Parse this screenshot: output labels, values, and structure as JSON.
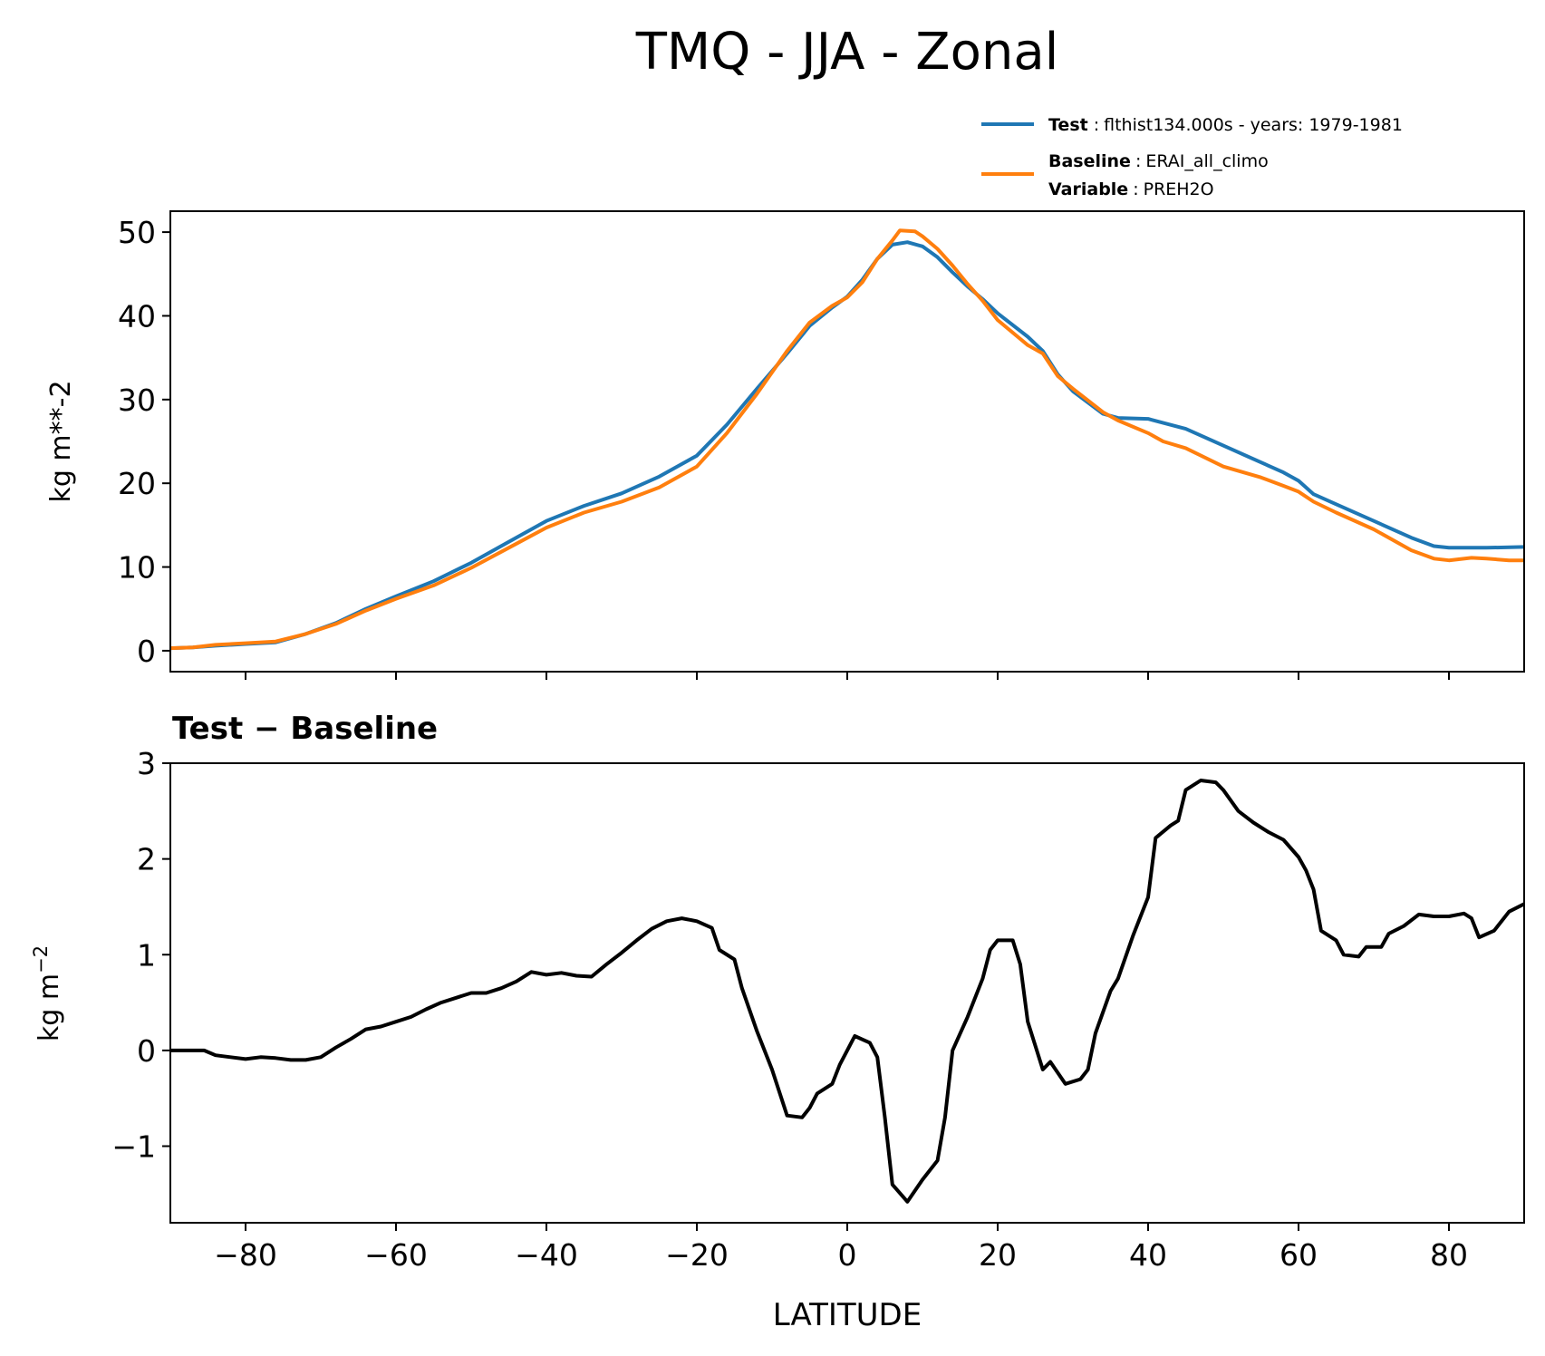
{
  "figure": {
    "title": "TMQ - JJA - Zonal"
  },
  "legend": {
    "test": {
      "label": "Test",
      "value": "flthist134.000s - years: 1979-1981",
      "color": "#1f77b4"
    },
    "baseline": {
      "label": "Baseline",
      "value": "ERAI_all_climo",
      "color": "#ff7f0e"
    },
    "variable": {
      "label": "Variable",
      "value": "PREH2O"
    }
  },
  "colors": {
    "test": "#1f77b4",
    "baseline": "#ff7f0e",
    "difference": "#000000"
  },
  "chart_data": [
    {
      "type": "line",
      "title": "",
      "xlabel": "",
      "ylabel": "kg m**-2",
      "xlim": [
        -90,
        90
      ],
      "ylim": [
        -2.5,
        52.5
      ],
      "xticks": [
        -80,
        -60,
        -40,
        -20,
        0,
        20,
        40,
        60,
        80
      ],
      "yticks": [
        0,
        10,
        20,
        30,
        40,
        50
      ],
      "ytick_labels": [
        "0",
        "10",
        "20",
        "30",
        "40",
        "50"
      ],
      "show_xtick_labels": false,
      "grid": false,
      "legend_position": "above top-right",
      "series": [
        {
          "name": "Test",
          "color": "#1f77b4",
          "points": [
            [
              -90,
              0.3
            ],
            [
              -87,
              0.4
            ],
            [
              -84,
              0.6
            ],
            [
              -80,
              0.8
            ],
            [
              -76,
              1.0
            ],
            [
              -72,
              2.0
            ],
            [
              -68,
              3.3
            ],
            [
              -64,
              5.0
            ],
            [
              -60,
              6.5
            ],
            [
              -55,
              8.3
            ],
            [
              -50,
              10.5
            ],
            [
              -45,
              13.0
            ],
            [
              -40,
              15.5
            ],
            [
              -35,
              17.3
            ],
            [
              -30,
              18.8
            ],
            [
              -25,
              20.8
            ],
            [
              -20,
              23.3
            ],
            [
              -16,
              27.0
            ],
            [
              -12,
              31.3
            ],
            [
              -8,
              35.5
            ],
            [
              -5,
              38.8
            ],
            [
              -2,
              41.0
            ],
            [
              0,
              42.3
            ],
            [
              2,
              44.3
            ],
            [
              4,
              46.8
            ],
            [
              6,
              48.5
            ],
            [
              8,
              48.8
            ],
            [
              10,
              48.3
            ],
            [
              12,
              47.0
            ],
            [
              14,
              45.2
            ],
            [
              16,
              43.5
            ],
            [
              18,
              42.0
            ],
            [
              20,
              40.3
            ],
            [
              24,
              37.5
            ],
            [
              26,
              35.8
            ],
            [
              28,
              33.0
            ],
            [
              30,
              31.0
            ],
            [
              34,
              28.3
            ],
            [
              36,
              27.8
            ],
            [
              40,
              27.7
            ],
            [
              45,
              26.5
            ],
            [
              50,
              24.5
            ],
            [
              55,
              22.5
            ],
            [
              58,
              21.3
            ],
            [
              60,
              20.3
            ],
            [
              62,
              18.7
            ],
            [
              65,
              17.5
            ],
            [
              70,
              15.5
            ],
            [
              75,
              13.5
            ],
            [
              78,
              12.5
            ],
            [
              80,
              12.3
            ],
            [
              85,
              12.3
            ],
            [
              90,
              12.4
            ]
          ]
        },
        {
          "name": "Baseline",
          "color": "#ff7f0e",
          "points": [
            [
              -90,
              0.3
            ],
            [
              -87,
              0.4
            ],
            [
              -84,
              0.7
            ],
            [
              -80,
              0.9
            ],
            [
              -76,
              1.1
            ],
            [
              -72,
              2.0
            ],
            [
              -68,
              3.2
            ],
            [
              -64,
              4.8
            ],
            [
              -60,
              6.2
            ],
            [
              -55,
              7.8
            ],
            [
              -50,
              9.9
            ],
            [
              -45,
              12.3
            ],
            [
              -40,
              14.7
            ],
            [
              -35,
              16.5
            ],
            [
              -30,
              17.8
            ],
            [
              -25,
              19.5
            ],
            [
              -20,
              22.0
            ],
            [
              -16,
              26.0
            ],
            [
              -12,
              30.7
            ],
            [
              -8,
              35.8
            ],
            [
              -5,
              39.2
            ],
            [
              -2,
              41.2
            ],
            [
              0,
              42.2
            ],
            [
              2,
              44.0
            ],
            [
              4,
              46.8
            ],
            [
              6,
              49.0
            ],
            [
              7,
              50.2
            ],
            [
              9,
              50.1
            ],
            [
              10,
              49.5
            ],
            [
              12,
              48.0
            ],
            [
              14,
              46.0
            ],
            [
              16,
              43.8
            ],
            [
              18,
              41.8
            ],
            [
              20,
              39.5
            ],
            [
              24,
              36.5
            ],
            [
              26,
              35.5
            ],
            [
              28,
              32.8
            ],
            [
              30,
              31.3
            ],
            [
              34,
              28.5
            ],
            [
              36,
              27.5
            ],
            [
              40,
              26.0
            ],
            [
              42,
              25.0
            ],
            [
              45,
              24.2
            ],
            [
              50,
              22.0
            ],
            [
              55,
              20.7
            ],
            [
              58,
              19.7
            ],
            [
              60,
              19.0
            ],
            [
              62,
              17.8
            ],
            [
              65,
              16.5
            ],
            [
              70,
              14.5
            ],
            [
              75,
              12.0
            ],
            [
              78,
              11.0
            ],
            [
              80,
              10.8
            ],
            [
              83,
              11.1
            ],
            [
              85,
              11.0
            ],
            [
              88,
              10.8
            ],
            [
              90,
              10.8
            ]
          ]
        }
      ]
    },
    {
      "type": "line",
      "title": "Test − Baseline",
      "xlabel": "LATITUDE",
      "ylabel": "kg m",
      "ylabel_sup": "−2",
      "xlim": [
        -90,
        90
      ],
      "ylim": [
        -1.8,
        3.0
      ],
      "xticks": [
        -80,
        -60,
        -40,
        -20,
        0,
        20,
        40,
        60,
        80
      ],
      "xtick_labels": [
        "−80",
        "−60",
        "−40",
        "−20",
        "0",
        "20",
        "40",
        "60",
        "80"
      ],
      "yticks": [
        -1,
        0,
        1,
        2,
        3
      ],
      "ytick_labels": [
        "−1",
        "0",
        "1",
        "2",
        "3"
      ],
      "grid": false,
      "series": [
        {
          "name": "Test − Baseline",
          "color": "#000000",
          "points": [
            [
              -90,
              0.0
            ],
            [
              -87,
              0.0
            ],
            [
              -85.5,
              0.0
            ],
            [
              -84,
              -0.05
            ],
            [
              -82,
              -0.07
            ],
            [
              -80,
              -0.09
            ],
            [
              -78,
              -0.07
            ],
            [
              -76,
              -0.08
            ],
            [
              -74,
              -0.1
            ],
            [
              -72,
              -0.1
            ],
            [
              -70,
              -0.07
            ],
            [
              -68,
              0.03
            ],
            [
              -66,
              0.12
            ],
            [
              -64,
              0.22
            ],
            [
              -62,
              0.25
            ],
            [
              -60,
              0.3
            ],
            [
              -58,
              0.35
            ],
            [
              -56,
              0.43
            ],
            [
              -54,
              0.5
            ],
            [
              -52,
              0.55
            ],
            [
              -50,
              0.6
            ],
            [
              -48,
              0.6
            ],
            [
              -46,
              0.65
            ],
            [
              -44,
              0.72
            ],
            [
              -42,
              0.82
            ],
            [
              -40,
              0.79
            ],
            [
              -38,
              0.81
            ],
            [
              -36,
              0.78
            ],
            [
              -34,
              0.77
            ],
            [
              -32,
              0.9
            ],
            [
              -30,
              1.02
            ],
            [
              -28,
              1.15
            ],
            [
              -26,
              1.27
            ],
            [
              -24,
              1.35
            ],
            [
              -22,
              1.38
            ],
            [
              -20,
              1.35
            ],
            [
              -18,
              1.28
            ],
            [
              -17,
              1.05
            ],
            [
              -15,
              0.95
            ],
            [
              -14,
              0.65
            ],
            [
              -12,
              0.2
            ],
            [
              -10,
              -0.2
            ],
            [
              -8,
              -0.68
            ],
            [
              -6,
              -0.7
            ],
            [
              -5,
              -0.6
            ],
            [
              -4,
              -0.45
            ],
            [
              -2,
              -0.35
            ],
            [
              -1,
              -0.15
            ],
            [
              1,
              0.15
            ],
            [
              3,
              0.08
            ],
            [
              4,
              -0.07
            ],
            [
              5,
              -0.7
            ],
            [
              6,
              -1.4
            ],
            [
              8,
              -1.58
            ],
            [
              10,
              -1.35
            ],
            [
              12,
              -1.15
            ],
            [
              13,
              -0.7
            ],
            [
              14,
              0.0
            ],
            [
              16,
              0.35
            ],
            [
              18,
              0.75
            ],
            [
              19,
              1.05
            ],
            [
              20,
              1.15
            ],
            [
              22,
              1.15
            ],
            [
              23,
              0.9
            ],
            [
              24,
              0.3
            ],
            [
              26,
              -0.2
            ],
            [
              27,
              -0.12
            ],
            [
              29,
              -0.35
            ],
            [
              31,
              -0.3
            ],
            [
              32,
              -0.2
            ],
            [
              33,
              0.18
            ],
            [
              35,
              0.62
            ],
            [
              36,
              0.75
            ],
            [
              38,
              1.2
            ],
            [
              40,
              1.6
            ],
            [
              41,
              2.22
            ],
            [
              43,
              2.35
            ],
            [
              44,
              2.4
            ],
            [
              45,
              2.72
            ],
            [
              47,
              2.82
            ],
            [
              49,
              2.8
            ],
            [
              50,
              2.72
            ],
            [
              52,
              2.5
            ],
            [
              54,
              2.38
            ],
            [
              56,
              2.28
            ],
            [
              58,
              2.2
            ],
            [
              60,
              2.02
            ],
            [
              61,
              1.88
            ],
            [
              62,
              1.68
            ],
            [
              63,
              1.25
            ],
            [
              65,
              1.15
            ],
            [
              66,
              1.0
            ],
            [
              68,
              0.98
            ],
            [
              69,
              1.08
            ],
            [
              71,
              1.08
            ],
            [
              72,
              1.22
            ],
            [
              74,
              1.3
            ],
            [
              76,
              1.42
            ],
            [
              78,
              1.4
            ],
            [
              80,
              1.4
            ],
            [
              82,
              1.43
            ],
            [
              83,
              1.38
            ],
            [
              84,
              1.18
            ],
            [
              86,
              1.25
            ],
            [
              88,
              1.45
            ],
            [
              90,
              1.53
            ]
          ]
        }
      ]
    }
  ]
}
